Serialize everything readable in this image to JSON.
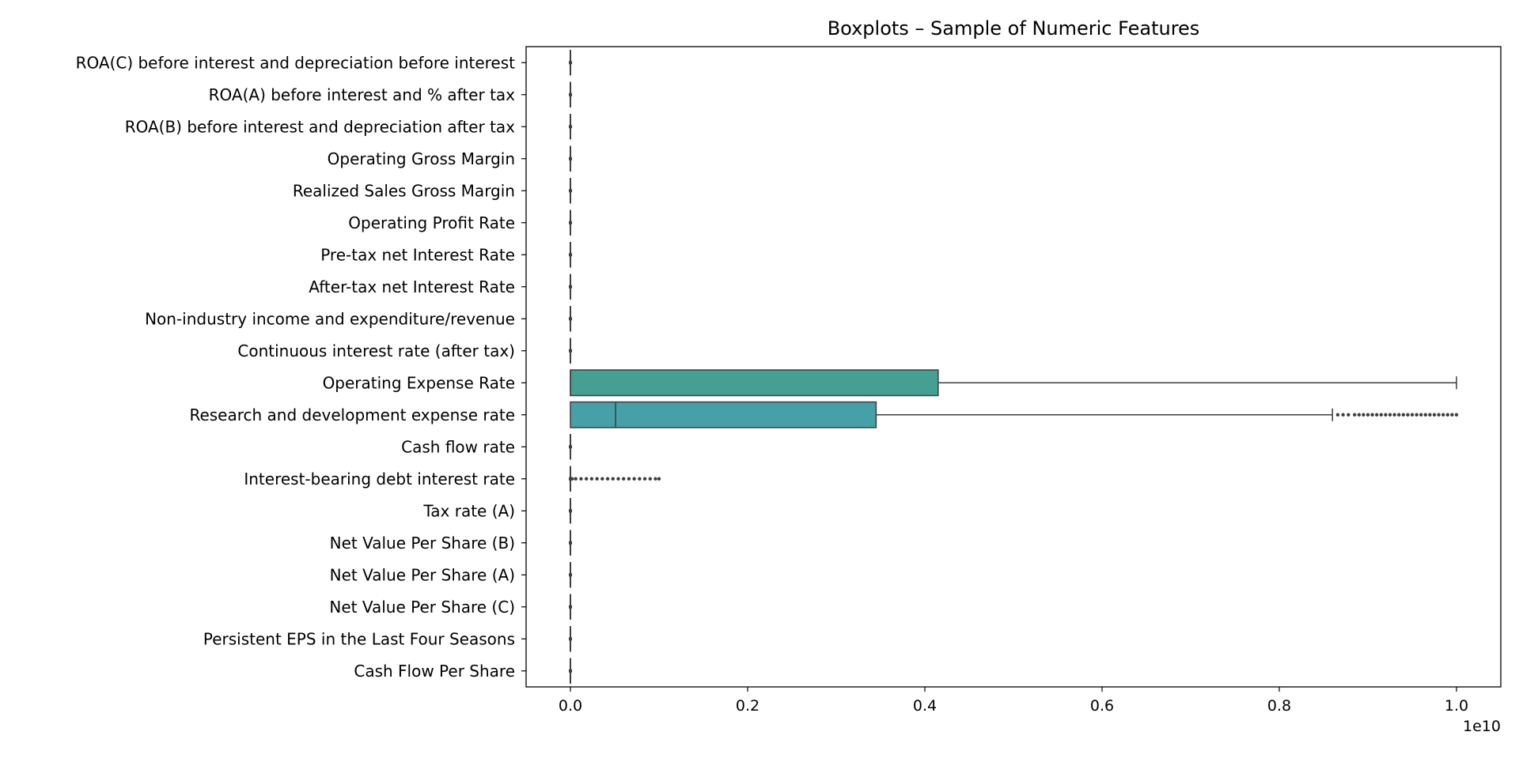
{
  "chart_data": {
    "type": "boxplot",
    "orientation": "horizontal",
    "title": "Boxplots – Sample of Numeric Features",
    "xlabel": "",
    "ylabel": "",
    "x_scale_label": "1e10",
    "xlim": [
      -0.05,
      1.05
    ],
    "x_scale_factor": 10000000000,
    "xticks": [
      0.0,
      0.2,
      0.4,
      0.6,
      0.8,
      1.0
    ],
    "xtick_labels": [
      "0.0",
      "0.2",
      "0.4",
      "0.6",
      "0.8",
      "1.0"
    ],
    "grid": false,
    "colors": {
      "box_outline": "#3d3d3d",
      "Operating Expense Rate": "#45a094",
      "Research and development expense rate": "#45a0a8"
    },
    "categories": [
      "ROA(C) before interest and depreciation before interest",
      "ROA(A) before interest and % after tax",
      "ROA(B) before interest and depreciation after tax",
      "Operating Gross Margin",
      "Realized Sales Gross Margin",
      "Operating Profit Rate",
      "Pre-tax net Interest Rate",
      "After-tax net Interest Rate",
      "Non-industry income and expenditure/revenue",
      "Continuous interest rate (after tax)",
      "Operating Expense Rate",
      "Research and development expense rate",
      "Cash flow rate",
      "Interest-bearing debt interest rate",
      "Tax rate (A)",
      "Net Value Per Share (B)",
      "Net Value Per Share (A)",
      "Net Value Per Share (C)",
      "Persistent EPS in the Last Four Seasons",
      "Cash Flow Per Share"
    ],
    "boxes": [
      {
        "name": "ROA(C) before interest and depreciation before interest",
        "min": 0,
        "q1": 0,
        "median": 0,
        "q3": 0,
        "max": 0,
        "outliers": []
      },
      {
        "name": "ROA(A) before interest and % after tax",
        "min": 0,
        "q1": 0,
        "median": 0,
        "q3": 0,
        "max": 0,
        "outliers": []
      },
      {
        "name": "ROA(B) before interest and depreciation after tax",
        "min": 0,
        "q1": 0,
        "median": 0,
        "q3": 0,
        "max": 0,
        "outliers": []
      },
      {
        "name": "Operating Gross Margin",
        "min": 0,
        "q1": 0,
        "median": 0,
        "q3": 0,
        "max": 0,
        "outliers": []
      },
      {
        "name": "Realized Sales Gross Margin",
        "min": 0,
        "q1": 0,
        "median": 0,
        "q3": 0,
        "max": 0,
        "outliers": []
      },
      {
        "name": "Operating Profit Rate",
        "min": 0,
        "q1": 0,
        "median": 0,
        "q3": 0,
        "max": 0,
        "outliers": []
      },
      {
        "name": "Pre-tax net Interest Rate",
        "min": 0,
        "q1": 0,
        "median": 0,
        "q3": 0,
        "max": 0,
        "outliers": []
      },
      {
        "name": "After-tax net Interest Rate",
        "min": 0,
        "q1": 0,
        "median": 0,
        "q3": 0,
        "max": 0,
        "outliers": []
      },
      {
        "name": "Non-industry income and expenditure/revenue",
        "min": 0,
        "q1": 0,
        "median": 0,
        "q3": 0,
        "max": 0,
        "outliers": []
      },
      {
        "name": "Continuous interest rate (after tax)",
        "min": 0,
        "q1": 0,
        "median": 0,
        "q3": 0,
        "max": 0,
        "outliers": []
      },
      {
        "name": "Operating Expense Rate",
        "min": 0,
        "q1": 0,
        "median": 0.0,
        "q3": 0.415,
        "max": 1.0,
        "outliers": []
      },
      {
        "name": "Research and development expense rate",
        "min": 0,
        "q1": 0,
        "median": 0.051,
        "q3": 0.345,
        "max": 0.86,
        "outliers": [
          0.866,
          0.872,
          0.878,
          0.885,
          0.89,
          0.895,
          0.9,
          0.905,
          0.91,
          0.915,
          0.92,
          0.925,
          0.93,
          0.935,
          0.94,
          0.945,
          0.95,
          0.955,
          0.96,
          0.965,
          0.97,
          0.975,
          0.98,
          0.985,
          0.99,
          0.995,
          1.0
        ]
      },
      {
        "name": "Cash flow rate",
        "min": 0,
        "q1": 0,
        "median": 0,
        "q3": 0,
        "max": 0,
        "outliers": []
      },
      {
        "name": "Interest-bearing debt interest rate",
        "min": 0,
        "q1": 0,
        "median": 0,
        "q3": 0,
        "max": 0,
        "outliers": [
          0.002,
          0.006,
          0.012,
          0.018,
          0.024,
          0.03,
          0.036,
          0.042,
          0.048,
          0.054,
          0.06,
          0.066,
          0.072,
          0.078,
          0.084,
          0.09,
          0.096,
          0.1
        ]
      },
      {
        "name": "Tax rate (A)",
        "min": 0,
        "q1": 0,
        "median": 0,
        "q3": 0,
        "max": 0,
        "outliers": []
      },
      {
        "name": "Net Value Per Share (B)",
        "min": 0,
        "q1": 0,
        "median": 0,
        "q3": 0,
        "max": 0,
        "outliers": []
      },
      {
        "name": "Net Value Per Share (A)",
        "min": 0,
        "q1": 0,
        "median": 0,
        "q3": 0,
        "max": 0,
        "outliers": []
      },
      {
        "name": "Net Value Per Share (C)",
        "min": 0,
        "q1": 0,
        "median": 0,
        "q3": 0,
        "max": 0,
        "outliers": []
      },
      {
        "name": "Persistent EPS in the Last Four Seasons",
        "min": 0,
        "q1": 0,
        "median": 0,
        "q3": 0,
        "max": 0,
        "outliers": []
      },
      {
        "name": "Cash Flow Per Share",
        "min": 0,
        "q1": 0,
        "median": 0,
        "q3": 0,
        "max": 0,
        "outliers": []
      }
    ]
  }
}
